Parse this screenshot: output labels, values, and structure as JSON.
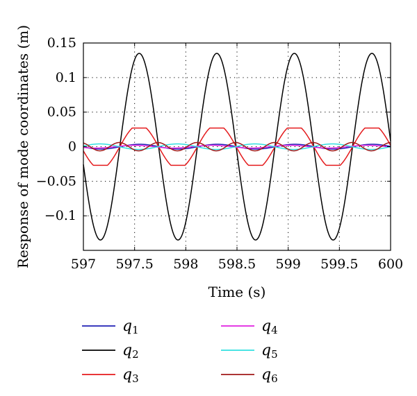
{
  "chart_data": {
    "type": "line",
    "title": "",
    "xlabel": "Time (s)",
    "ylabel": "Response of mode coordinates (m)",
    "xlim": [
      597,
      600
    ],
    "ylim": [
      -0.15,
      0.15
    ],
    "xticks": [
      597,
      597.5,
      598,
      598.5,
      599,
      599.5,
      600
    ],
    "xtick_labels": [
      "597",
      "597.5",
      "598",
      "598.5",
      "599",
      "599.5",
      "600"
    ],
    "yticks": [
      -0.1,
      -0.05,
      0,
      0.05,
      0.1,
      0.15
    ],
    "ytick_labels": [
      "−0.1",
      "−0.05",
      "0",
      "0.05",
      "0.1",
      "0.15"
    ],
    "grid": "dotted",
    "legend_position": "below",
    "frequency_hz": 1.32,
    "series": [
      {
        "name": "q",
        "sub": "1",
        "color": "#1f1fb4",
        "amplitude": 0.0035,
        "phase_deg": 30,
        "waveform": "sine",
        "peak_time": 597.55
      },
      {
        "name": "q",
        "sub": "2",
        "color": "#000000",
        "amplitude": 0.135,
        "phase_deg": 0,
        "waveform": "sine",
        "peak_time": 597.545
      },
      {
        "name": "q",
        "sub": "3",
        "color": "#e41a1c",
        "amplitude": 0.027,
        "phase_deg": 0,
        "waveform": "clipped",
        "peak_time": 597.545
      },
      {
        "name": "q",
        "sub": "4",
        "color": "#e020e0",
        "amplitude": 0.002,
        "phase_deg": 60,
        "waveform": "sine",
        "peak_time": 597.5
      },
      {
        "name": "q",
        "sub": "5",
        "color": "#30e0e0",
        "amplitude": 0.004,
        "phase_deg": 180,
        "waveform": "sine",
        "peak_time": 597.16
      },
      {
        "name": "q",
        "sub": "6",
        "color": "#a01818",
        "amplitude": 0.006,
        "phase_deg": 90,
        "waveform": "sine2",
        "peak_time": 597.35
      }
    ]
  }
}
